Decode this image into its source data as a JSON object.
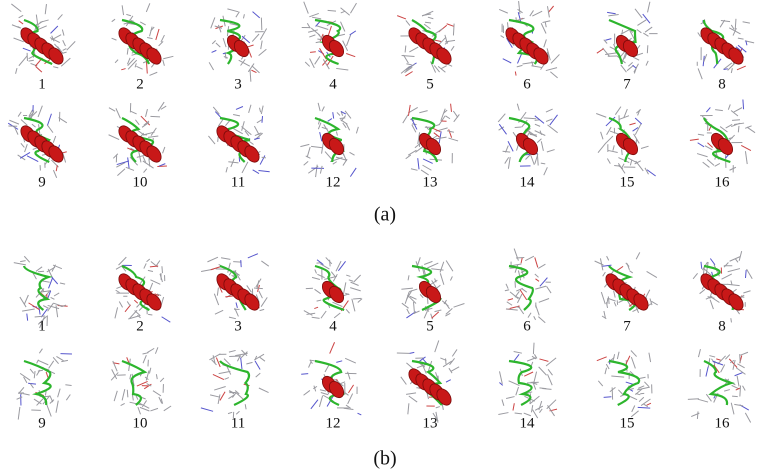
{
  "panels": [
    {
      "caption": "(a)",
      "structures": [
        "1",
        "2",
        "3",
        "4",
        "5",
        "6",
        "7",
        "8",
        "9",
        "10",
        "11",
        "12",
        "13",
        "14",
        "15",
        "16"
      ]
    },
    {
      "caption": "(b)",
      "structures": [
        "1",
        "2",
        "3",
        "4",
        "5",
        "6",
        "7",
        "8",
        "9",
        "10",
        "11",
        "12",
        "13",
        "14",
        "15",
        "16"
      ]
    }
  ]
}
